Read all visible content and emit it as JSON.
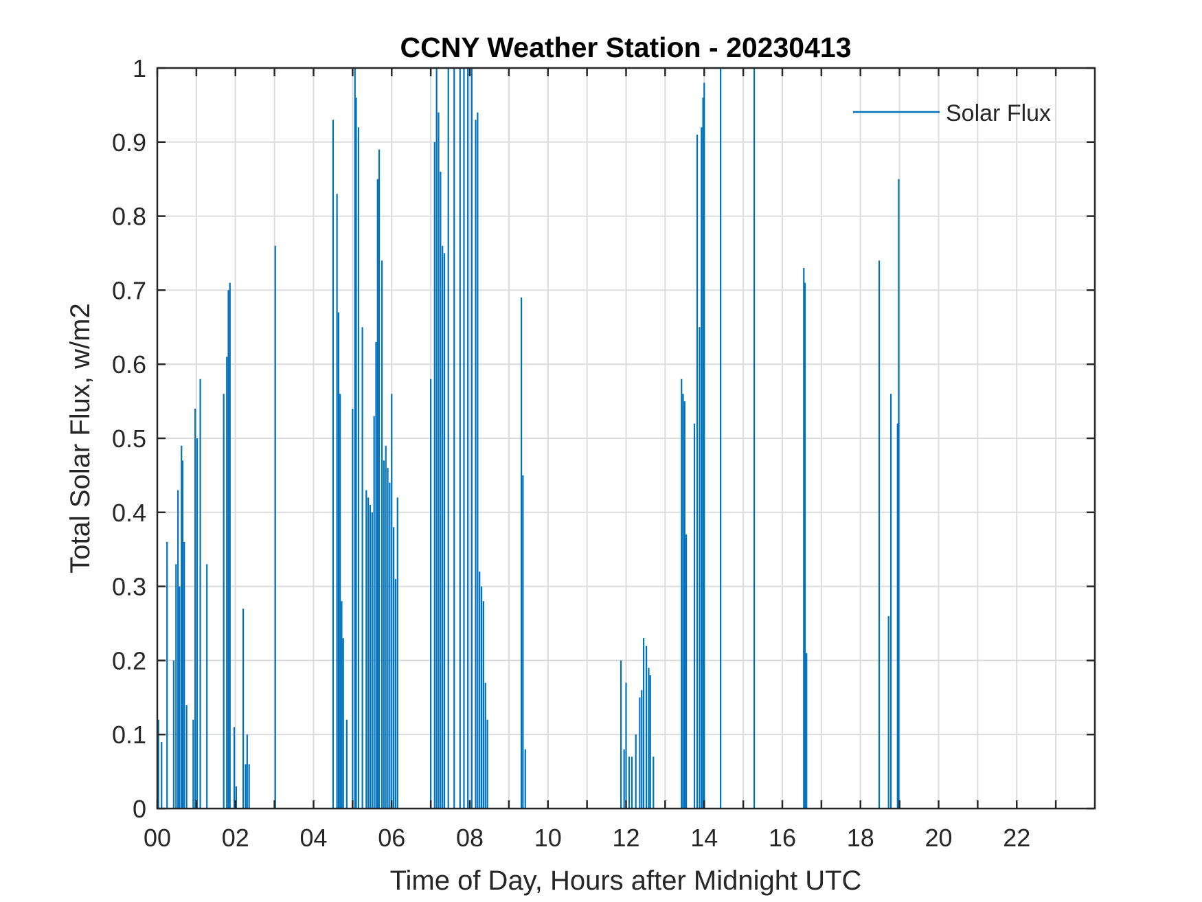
{
  "chart_data": {
    "type": "line",
    "title": "CCNY Weather Station - 20230413",
    "xlabel": "Time of Day, Hours after Midnight UTC",
    "ylabel": "Total Solar Flux, w/m2",
    "xlim": [
      0,
      24
    ],
    "ylim": [
      0,
      1
    ],
    "x_ticks": [
      0,
      2,
      4,
      6,
      8,
      10,
      12,
      14,
      16,
      18,
      20,
      22
    ],
    "x_tick_labels": [
      "00",
      "02",
      "04",
      "06",
      "08",
      "10",
      "12",
      "14",
      "16",
      "18",
      "20",
      "22"
    ],
    "x_minor_ticks": [
      1,
      3,
      5,
      7,
      9,
      11,
      13,
      15,
      17,
      19,
      21,
      23
    ],
    "y_ticks": [
      0,
      0.1,
      0.2,
      0.3,
      0.4,
      0.5,
      0.6,
      0.7,
      0.8,
      0.9,
      1
    ],
    "y_tick_labels": [
      "0",
      "0.1",
      "0.2",
      "0.3",
      "0.4",
      "0.5",
      "0.6",
      "0.7",
      "0.8",
      "0.9",
      "1"
    ],
    "grid": true,
    "legend": {
      "position": "top-right",
      "entries": [
        "Solar Flux"
      ]
    },
    "series": [
      {
        "name": "Solar Flux",
        "color": "#0072BD",
        "spikes": [
          [
            0.03,
            0.12
          ],
          [
            0.11,
            0.09
          ],
          [
            0.25,
            0.36
          ],
          [
            0.42,
            0.2
          ],
          [
            0.48,
            0.33
          ],
          [
            0.53,
            0.43
          ],
          [
            0.57,
            0.3
          ],
          [
            0.62,
            0.49
          ],
          [
            0.65,
            0.47
          ],
          [
            0.69,
            0.36
          ],
          [
            0.75,
            0.14
          ],
          [
            0.92,
            0.12
          ],
          [
            0.97,
            0.54
          ],
          [
            1.02,
            0.5
          ],
          [
            1.1,
            0.58
          ],
          [
            1.27,
            0.33
          ],
          [
            1.7,
            0.56
          ],
          [
            1.78,
            0.61
          ],
          [
            1.82,
            0.7
          ],
          [
            1.86,
            0.71
          ],
          [
            1.97,
            0.11
          ],
          [
            2.02,
            0.03
          ],
          [
            2.2,
            0.27
          ],
          [
            2.26,
            0.06
          ],
          [
            2.3,
            0.1
          ],
          [
            2.35,
            0.06
          ],
          [
            3.02,
            0.76
          ],
          [
            4.5,
            0.93
          ],
          [
            4.6,
            0.83
          ],
          [
            4.64,
            0.67
          ],
          [
            4.68,
            0.56
          ],
          [
            4.72,
            0.28
          ],
          [
            4.76,
            0.23
          ],
          [
            4.85,
            0.12
          ],
          [
            5.0,
            0.54
          ],
          [
            5.06,
            1.0
          ],
          [
            5.09,
            0.96
          ],
          [
            5.15,
            0.92
          ],
          [
            5.25,
            0.65
          ],
          [
            5.35,
            0.43
          ],
          [
            5.4,
            0.42
          ],
          [
            5.45,
            0.41
          ],
          [
            5.5,
            0.4
          ],
          [
            5.55,
            0.53
          ],
          [
            5.6,
            0.63
          ],
          [
            5.64,
            0.85
          ],
          [
            5.68,
            0.89
          ],
          [
            5.75,
            0.74
          ],
          [
            5.8,
            0.47
          ],
          [
            5.85,
            0.49
          ],
          [
            5.9,
            0.46
          ],
          [
            5.95,
            0.44
          ],
          [
            6.0,
            0.56
          ],
          [
            6.05,
            0.38
          ],
          [
            6.1,
            0.31
          ],
          [
            6.15,
            0.42
          ],
          [
            7.0,
            0.58
          ],
          [
            7.1,
            0.9
          ],
          [
            7.15,
            1.0
          ],
          [
            7.2,
            0.94
          ],
          [
            7.25,
            0.86
          ],
          [
            7.3,
            0.76
          ],
          [
            7.35,
            0.75
          ],
          [
            7.45,
            1.0
          ],
          [
            7.6,
            1.0
          ],
          [
            7.75,
            1.0
          ],
          [
            7.85,
            1.0
          ],
          [
            7.95,
            1.0
          ],
          [
            8.05,
            1.0
          ],
          [
            8.15,
            0.93
          ],
          [
            8.2,
            0.94
          ],
          [
            8.25,
            0.32
          ],
          [
            8.3,
            0.3
          ],
          [
            8.35,
            0.28
          ],
          [
            8.4,
            0.17
          ],
          [
            8.45,
            0.12
          ],
          [
            9.32,
            0.69
          ],
          [
            9.36,
            0.45
          ],
          [
            9.42,
            0.08
          ],
          [
            11.87,
            0.2
          ],
          [
            11.95,
            0.08
          ],
          [
            12.0,
            0.17
          ],
          [
            12.08,
            0.07
          ],
          [
            12.15,
            0.07
          ],
          [
            12.25,
            0.1
          ],
          [
            12.35,
            0.15
          ],
          [
            12.4,
            0.16
          ],
          [
            12.45,
            0.23
          ],
          [
            12.52,
            0.22
          ],
          [
            12.58,
            0.19
          ],
          [
            12.62,
            0.18
          ],
          [
            12.7,
            0.07
          ],
          [
            13.42,
            0.58
          ],
          [
            13.46,
            0.56
          ],
          [
            13.5,
            0.55
          ],
          [
            13.54,
            0.37
          ],
          [
            13.75,
            0.52
          ],
          [
            13.82,
            0.91
          ],
          [
            13.88,
            0.65
          ],
          [
            13.93,
            0.92
          ],
          [
            13.97,
            0.96
          ],
          [
            14.0,
            0.98
          ],
          [
            14.42,
            1.0
          ],
          [
            15.28,
            1.0
          ],
          [
            16.55,
            0.73
          ],
          [
            16.58,
            0.71
          ],
          [
            16.62,
            0.21
          ],
          [
            18.48,
            0.74
          ],
          [
            18.72,
            0.26
          ],
          [
            18.78,
            0.56
          ],
          [
            18.95,
            0.52
          ],
          [
            18.98,
            0.85
          ]
        ]
      }
    ]
  }
}
